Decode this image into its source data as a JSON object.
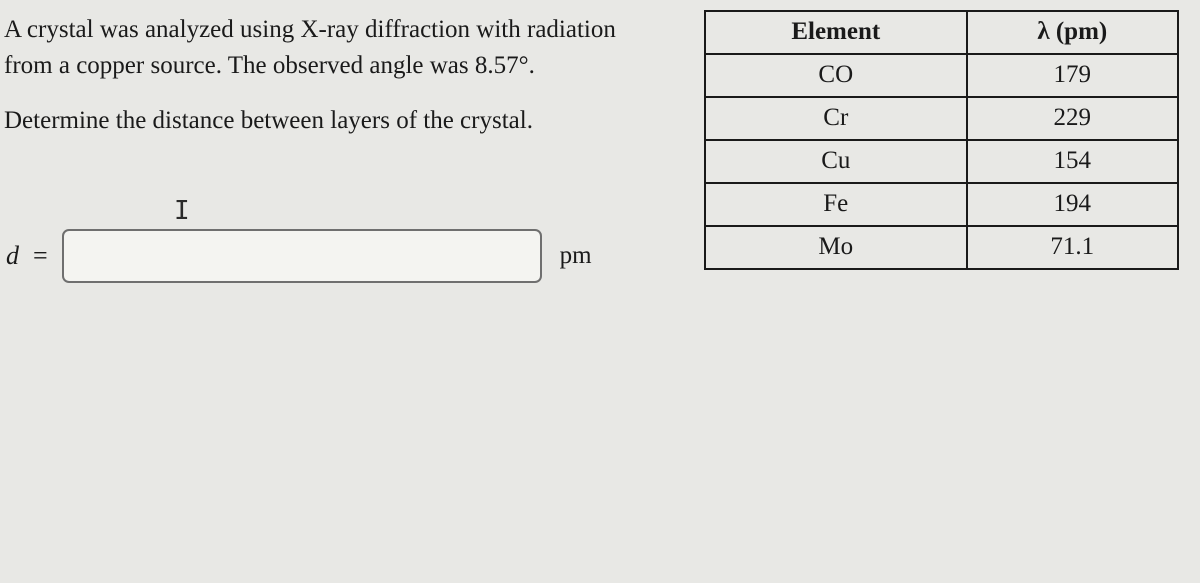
{
  "problem": {
    "line1": "A crystal was analyzed using X-ray diffraction with radiation from a copper source. The observed angle was 8.57°.",
    "instruction": "Determine the distance between layers of the crystal."
  },
  "answer": {
    "var": "d",
    "eq": "=",
    "value": "",
    "unit": "pm"
  },
  "table": {
    "headers": {
      "element": "Element",
      "lambda": "λ (pm)"
    },
    "rows": [
      {
        "el": "CO",
        "val": "179"
      },
      {
        "el": "Cr",
        "val": "229"
      },
      {
        "el": "Cu",
        "val": "154"
      },
      {
        "el": "Fe",
        "val": "194"
      },
      {
        "el": "Mo",
        "val": "71.1"
      }
    ]
  },
  "cursor_glyph": "I"
}
